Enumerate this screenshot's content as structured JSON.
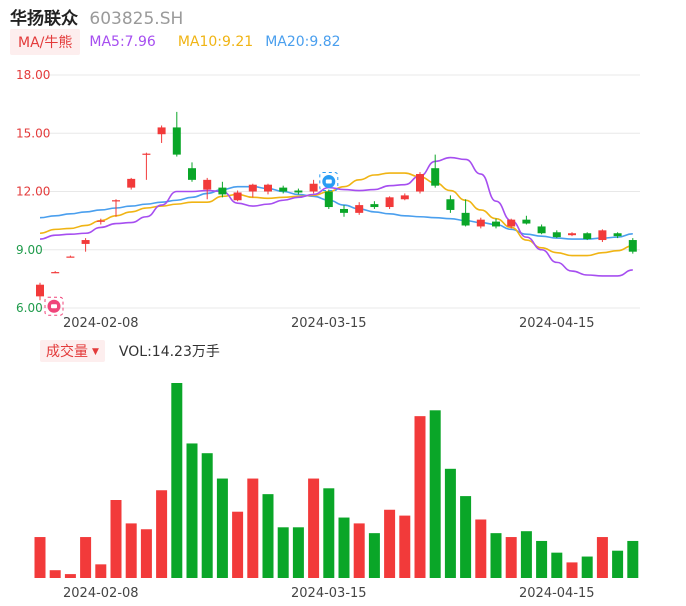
{
  "header": {
    "name": "华扬联众",
    "code": "603825.SH"
  },
  "ma_legend": {
    "tag": "MA/牛熊",
    "ma5": "MA5:7.96",
    "ma10": "MA10:9.21",
    "ma20": "MA20:9.82"
  },
  "volume_legend": {
    "tag": "成交量",
    "tag_arrow": "▼",
    "value": "VOL:14.23万手"
  },
  "colors": {
    "up": "#f23a3a",
    "down": "#0aa628",
    "ma5": "#a64ef0",
    "ma10": "#f0b414",
    "ma20": "#4a9fee",
    "tick_red": "#e33b3b",
    "tick_green": "#1f9b4b"
  },
  "icons": {
    "bull_marker": "bull-icon",
    "bear_marker": "bear-icon"
  },
  "chart_data": [
    {
      "type": "candlestick",
      "y_ticks": [
        "18.00",
        "15.00",
        "12.00",
        "9.00",
        "6.00"
      ],
      "ylim": [
        6,
        18
      ],
      "x_tick_labels": [
        {
          "label": "2024-02-08",
          "index": 4
        },
        {
          "label": "2024-03-15",
          "index": 19
        },
        {
          "label": "2024-04-15",
          "index": 34
        }
      ],
      "candles": [
        {
          "o": 6.6,
          "c": 7.2,
          "h": 7.3,
          "l": 6.4
        },
        {
          "o": 7.85,
          "c": 7.85,
          "h": 7.9,
          "l": 7.8
        },
        {
          "o": 8.65,
          "c": 8.65,
          "h": 8.7,
          "l": 8.6
        },
        {
          "o": 9.3,
          "c": 9.5,
          "h": 9.6,
          "l": 8.9
        },
        {
          "o": 10.45,
          "c": 10.5,
          "h": 10.6,
          "l": 10.3
        },
        {
          "o": 11.5,
          "c": 11.55,
          "h": 11.6,
          "l": 10.7
        },
        {
          "o": 12.2,
          "c": 12.65,
          "h": 12.7,
          "l": 12.1
        },
        {
          "o": 13.95,
          "c": 13.95,
          "h": 14.0,
          "l": 12.6
        },
        {
          "o": 14.95,
          "c": 15.3,
          "h": 15.4,
          "l": 14.5
        },
        {
          "o": 15.3,
          "c": 13.9,
          "h": 16.1,
          "l": 13.8
        },
        {
          "o": 13.2,
          "c": 12.6,
          "h": 13.5,
          "l": 12.5
        },
        {
          "o": 12.1,
          "c": 12.6,
          "h": 12.7,
          "l": 11.6
        },
        {
          "o": 12.2,
          "c": 11.85,
          "h": 12.5,
          "l": 11.7
        },
        {
          "o": 11.55,
          "c": 11.95,
          "h": 12.05,
          "l": 11.5
        },
        {
          "o": 12.0,
          "c": 12.35,
          "h": 12.4,
          "l": 11.7
        },
        {
          "o": 12.0,
          "c": 12.35,
          "h": 12.4,
          "l": 11.85
        },
        {
          "o": 12.2,
          "c": 12.0,
          "h": 12.3,
          "l": 11.9
        },
        {
          "o": 12.05,
          "c": 11.95,
          "h": 12.15,
          "l": 11.85
        },
        {
          "o": 12.0,
          "c": 12.4,
          "h": 12.6,
          "l": 11.9
        },
        {
          "o": 12.0,
          "c": 11.2,
          "h": 12.1,
          "l": 11.1
        },
        {
          "o": 11.1,
          "c": 10.9,
          "h": 11.3,
          "l": 10.7
        },
        {
          "o": 10.9,
          "c": 11.3,
          "h": 11.45,
          "l": 10.8
        },
        {
          "o": 11.35,
          "c": 11.2,
          "h": 11.5,
          "l": 11.1
        },
        {
          "o": 11.2,
          "c": 11.7,
          "h": 11.75,
          "l": 11.1
        },
        {
          "o": 11.6,
          "c": 11.8,
          "h": 11.9,
          "l": 11.55
        },
        {
          "o": 12.0,
          "c": 12.9,
          "h": 13.0,
          "l": 11.9
        },
        {
          "o": 13.2,
          "c": 12.3,
          "h": 13.9,
          "l": 12.2
        },
        {
          "o": 11.6,
          "c": 11.05,
          "h": 11.8,
          "l": 10.9
        },
        {
          "o": 10.9,
          "c": 10.25,
          "h": 11.6,
          "l": 10.2
        },
        {
          "o": 10.2,
          "c": 10.55,
          "h": 10.65,
          "l": 10.1
        },
        {
          "o": 10.45,
          "c": 10.2,
          "h": 10.6,
          "l": 10.1
        },
        {
          "o": 10.2,
          "c": 10.55,
          "h": 10.6,
          "l": 10.1
        },
        {
          "o": 10.55,
          "c": 10.35,
          "h": 10.75,
          "l": 10.3
        },
        {
          "o": 10.2,
          "c": 9.85,
          "h": 10.3,
          "l": 9.8
        },
        {
          "o": 9.9,
          "c": 9.65,
          "h": 10.0,
          "l": 9.6
        },
        {
          "o": 9.75,
          "c": 9.85,
          "h": 9.9,
          "l": 9.7
        },
        {
          "o": 9.85,
          "c": 9.55,
          "h": 9.9,
          "l": 9.5
        },
        {
          "o": 9.5,
          "c": 10.0,
          "h": 10.05,
          "l": 9.4
        },
        {
          "o": 9.85,
          "c": 9.7,
          "h": 9.9,
          "l": 9.6
        },
        {
          "o": 9.5,
          "c": 8.9,
          "h": 9.6,
          "l": 8.8
        }
      ],
      "ma5": [
        9.55,
        9.75,
        9.8,
        9.85,
        10.15,
        10.35,
        10.4,
        10.7,
        11.3,
        12.0,
        12.0,
        12.05,
        12.0,
        11.4,
        11.25,
        11.35,
        11.55,
        11.7,
        11.85,
        12.2,
        12.1,
        12.05,
        12.1,
        12.3,
        12.35,
        12.8,
        13.55,
        13.75,
        13.65,
        12.9,
        11.5,
        10.5,
        9.65,
        9.0,
        8.35,
        7.9,
        7.7,
        7.65,
        7.65,
        7.96
      ],
      "ma10": [
        9.85,
        10.05,
        10.1,
        10.25,
        10.5,
        10.75,
        10.95,
        11.15,
        11.25,
        11.35,
        11.45,
        11.45,
        11.75,
        11.85,
        11.7,
        11.65,
        11.7,
        11.75,
        11.8,
        12.0,
        12.25,
        12.6,
        12.85,
        12.95,
        12.95,
        12.75,
        12.45,
        12.05,
        11.55,
        11.05,
        10.6,
        10.15,
        9.5,
        9.1,
        8.85,
        8.7,
        8.7,
        8.85,
        8.95,
        9.21
      ],
      "ma20": [
        10.65,
        10.75,
        10.85,
        10.95,
        11.05,
        11.15,
        11.25,
        11.35,
        11.45,
        11.55,
        11.7,
        11.9,
        12.1,
        12.25,
        12.25,
        12.15,
        12.0,
        11.85,
        11.75,
        11.55,
        11.3,
        11.1,
        10.95,
        10.85,
        10.75,
        10.7,
        10.65,
        10.6,
        10.5,
        10.4,
        10.3,
        10.05,
        9.8,
        9.7,
        9.6,
        9.55,
        9.55,
        9.6,
        9.65,
        9.82
      ]
    },
    {
      "type": "bar",
      "x_tick_labels": [
        {
          "label": "2024-02-08",
          "index": 4
        },
        {
          "label": "2024-03-15",
          "index": 19
        },
        {
          "label": "2024-04-15",
          "index": 34
        }
      ],
      "values": [
        21,
        4,
        2,
        21,
        7,
        40,
        28,
        25,
        45,
        100,
        69,
        64,
        51,
        34,
        51,
        43,
        26,
        26,
        51,
        46,
        31,
        28,
        23,
        35,
        32,
        83,
        86,
        56,
        42,
        30,
        23,
        21,
        24,
        19,
        13,
        8,
        11,
        21,
        14,
        19
      ],
      "up": [
        true,
        true,
        true,
        true,
        true,
        true,
        true,
        true,
        true,
        false,
        false,
        false,
        false,
        true,
        true,
        false,
        false,
        false,
        true,
        false,
        false,
        true,
        false,
        true,
        true,
        true,
        false,
        false,
        false,
        true,
        false,
        true,
        false,
        false,
        false,
        true,
        false,
        true,
        false,
        false
      ]
    }
  ]
}
